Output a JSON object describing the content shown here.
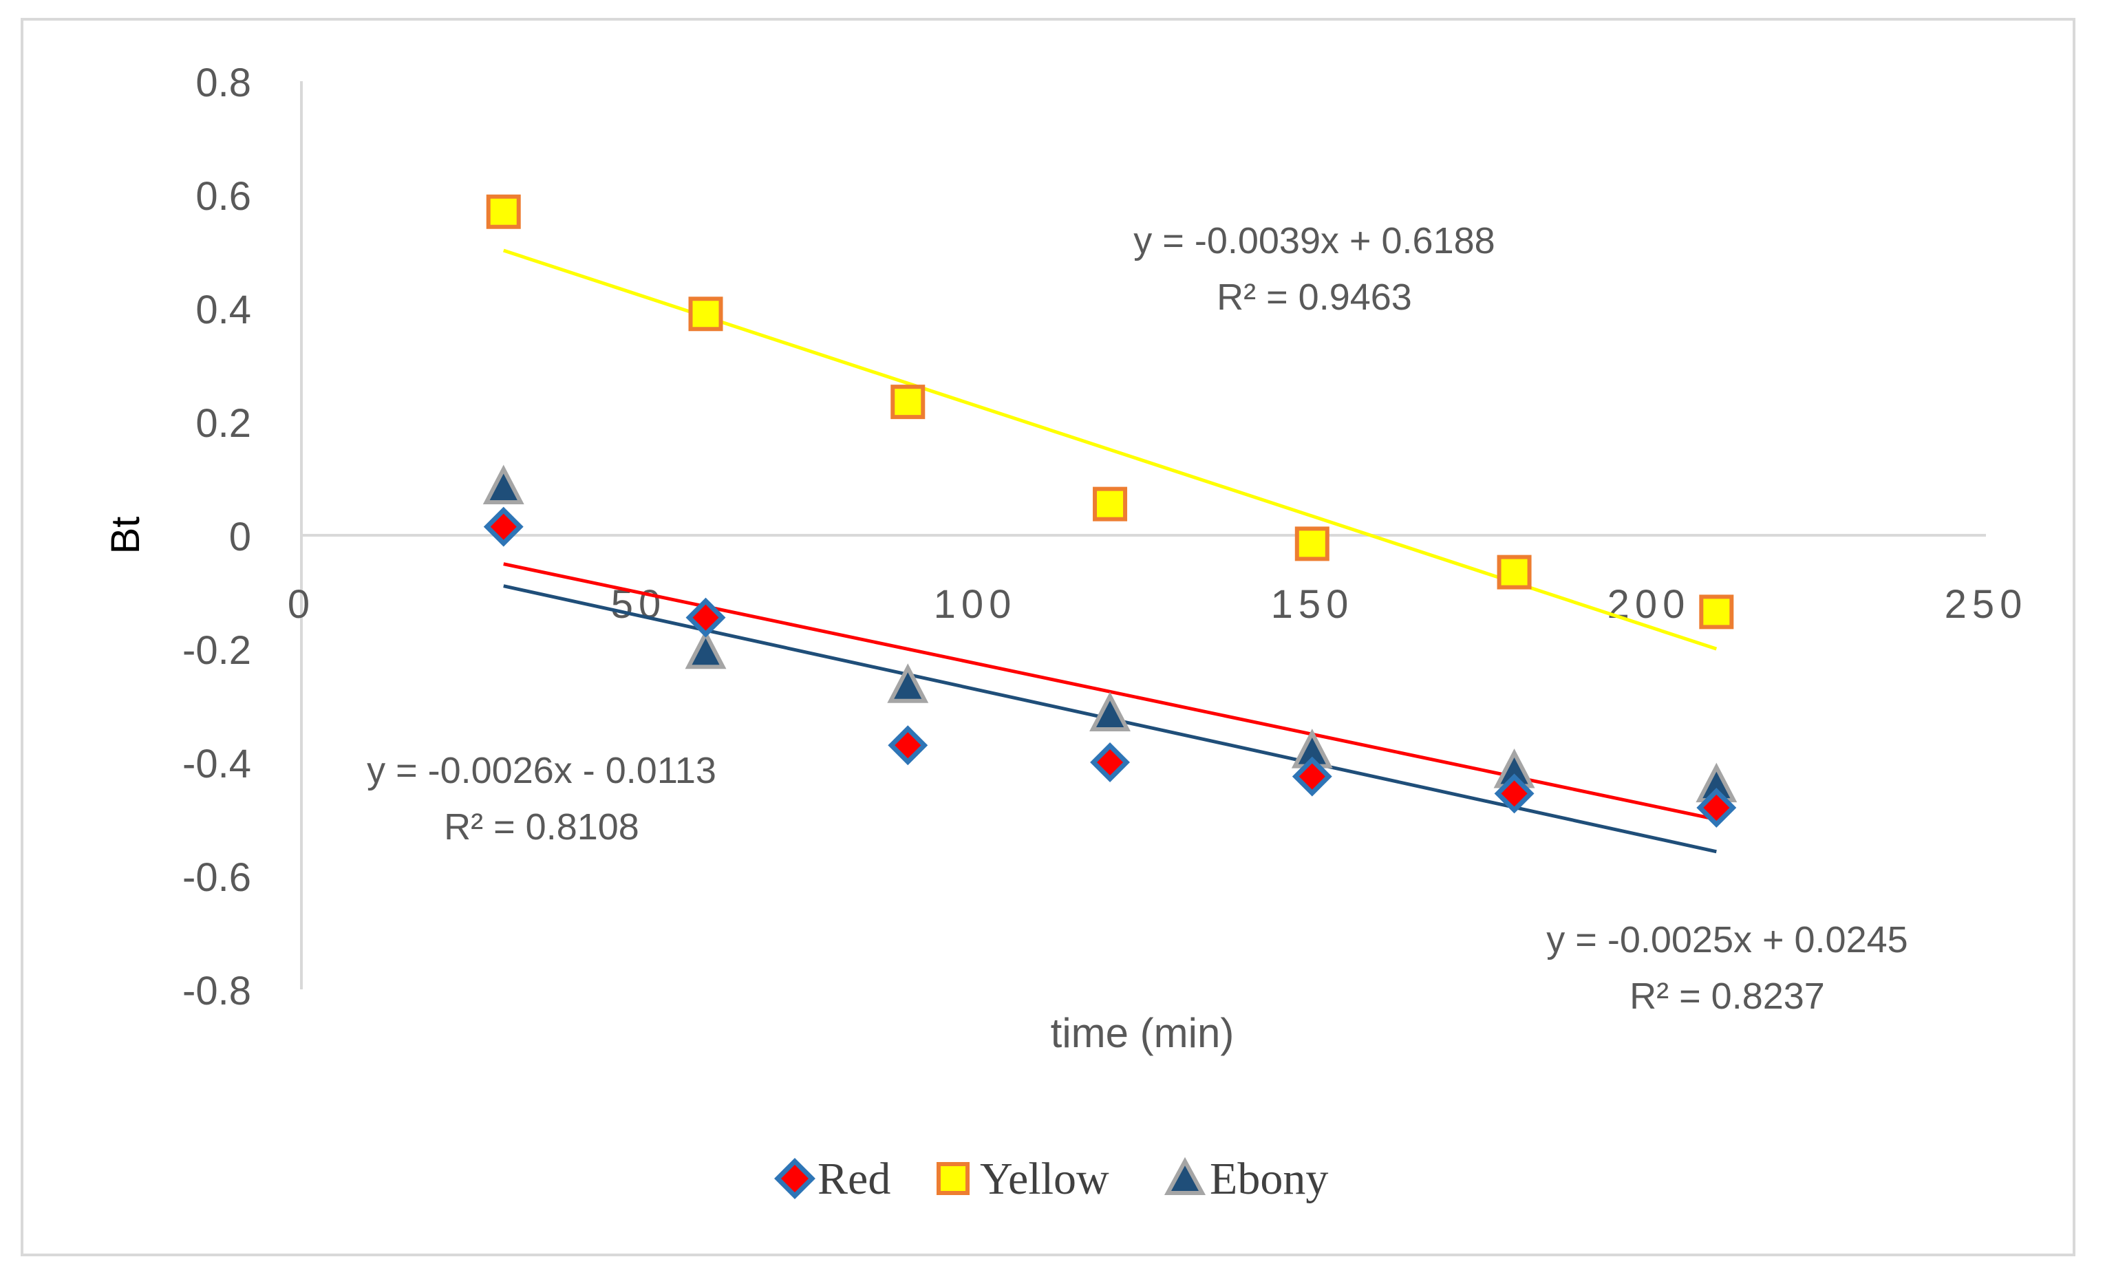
{
  "chart_data": {
    "type": "scatter",
    "title": "",
    "xlabel": "time (min)",
    "ylabel": "Bt",
    "xlim": [
      0,
      250
    ],
    "ylim": [
      -0.8,
      0.8
    ],
    "x_ticks": [
      "0",
      "50",
      "100",
      "150",
      "200",
      "250"
    ],
    "y_ticks": [
      "0.8",
      "0.6",
      "0.4",
      "0.2",
      "0",
      "-0.2",
      "-0.4",
      "-0.6",
      "-0.8"
    ],
    "grid": false,
    "legend_position": "bottom",
    "series": [
      {
        "name": "Red",
        "marker": "diamond",
        "fill": "#ff0000",
        "stroke": "#2e75b6",
        "line_color": "#ff0000",
        "x": [
          30,
          60,
          90,
          120,
          150,
          180,
          210
        ],
        "y": [
          0.015,
          -0.145,
          -0.37,
          -0.4,
          -0.425,
          -0.455,
          -0.48
        ],
        "trendline": {
          "slope": -0.0025,
          "intercept": 0.0245,
          "x_range": [
            30,
            210
          ]
        },
        "equation": "y = -0.0025x + 0.0245",
        "r2": "R² = 0.8237"
      },
      {
        "name": "Yellow",
        "marker": "square",
        "fill": "#ffff00",
        "stroke": "#ed7d31",
        "line_color": "#ffff00",
        "x": [
          30,
          60,
          90,
          120,
          150,
          180,
          210
        ],
        "y": [
          0.57,
          0.39,
          0.235,
          0.055,
          -0.015,
          -0.065,
          -0.135
        ],
        "trendline": {
          "slope": -0.0039,
          "intercept": 0.6188,
          "x_range": [
            30,
            210
          ]
        },
        "equation": "y = -0.0039x + 0.6188",
        "r2": "R² = 0.9463"
      },
      {
        "name": "Ebony",
        "marker": "triangle",
        "fill": "#1f4e79",
        "stroke": "#a5a5a5",
        "line_color": "#1f4e79",
        "x": [
          30,
          60,
          90,
          120,
          150,
          180,
          210
        ],
        "y": [
          0.08,
          -0.21,
          -0.27,
          -0.32,
          -0.385,
          -0.42,
          -0.445
        ],
        "trendline": {
          "slope": -0.0026,
          "intercept": -0.0113,
          "x_range": [
            30,
            210
          ]
        },
        "equation": "y = -0.0026x - 0.0113",
        "r2": "R² = 0.8108"
      }
    ]
  }
}
